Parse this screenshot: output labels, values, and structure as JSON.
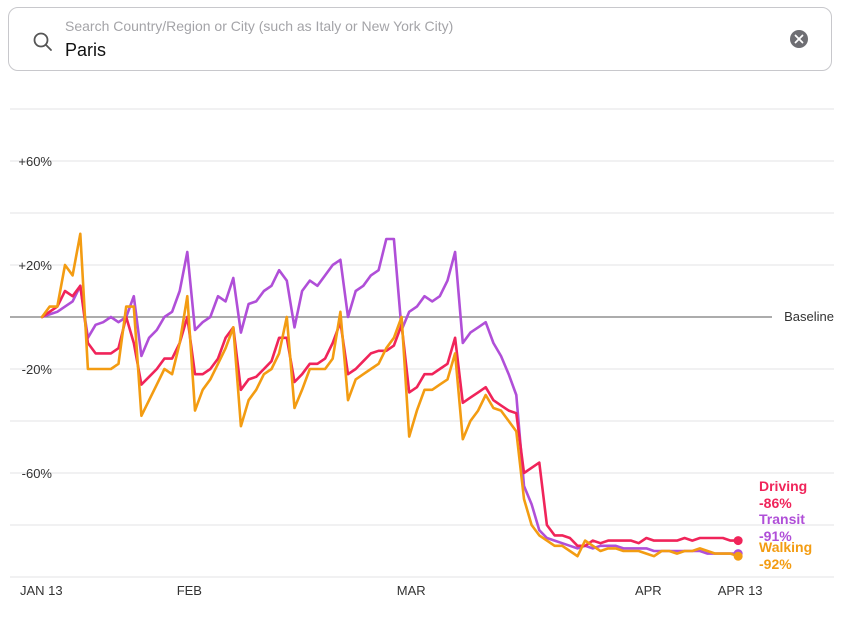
{
  "search": {
    "placeholder": "Search Country/Region or City (such as Italy or New York City)",
    "value": "Paris",
    "search_icon": "search-icon",
    "clear_icon": "close-circle-icon"
  },
  "chart_data": {
    "type": "line",
    "y_unit": "% change from baseline",
    "ylim": [
      -100,
      40
    ],
    "y_ticks": [
      {
        "value": 60,
        "label": "+60%"
      },
      {
        "value": 20,
        "label": "+20%"
      },
      {
        "value": -20,
        "label": "-20%"
      },
      {
        "value": -60,
        "label": "-60%"
      }
    ],
    "y_gridlines": [
      80,
      60,
      40,
      20,
      -20,
      -40,
      -60,
      -80,
      -100
    ],
    "baseline_label": "Baseline",
    "x_ticks": [
      {
        "day": 0,
        "label": "JAN 13"
      },
      {
        "day": 19,
        "label": "FEB"
      },
      {
        "day": 48,
        "label": "MAR"
      },
      {
        "day": 79,
        "label": "APR"
      },
      {
        "day": 91,
        "label": "APR 13"
      }
    ],
    "x_range_days": [
      0,
      91
    ],
    "grid": true,
    "series": [
      {
        "name": "Driving",
        "end_label": "-86%",
        "color": "#f0245a",
        "values": [
          0,
          2,
          4,
          10,
          8,
          12,
          -10,
          -14,
          -14,
          -14,
          -12,
          0,
          -10,
          -26,
          -23,
          -20,
          -16,
          -16,
          -10,
          0,
          -22,
          -22,
          -20,
          -16,
          -8,
          -4,
          -28,
          -24,
          -23,
          -20,
          -17,
          -8,
          -8,
          -25,
          -22,
          -18,
          -18,
          -16,
          -10,
          -2,
          -22,
          -20,
          -17,
          -14,
          -13,
          -13,
          -11,
          -3,
          -29,
          -27,
          -22,
          -22,
          -20,
          -18,
          -8,
          -33,
          -31,
          -29,
          -27,
          -32,
          -34,
          -36,
          -37,
          -60,
          -58,
          -56,
          -80,
          -84,
          -84,
          -85,
          -88,
          -88,
          -86,
          -87,
          -86,
          -86,
          -86,
          -86,
          -87,
          -85,
          -86,
          -86,
          -86,
          -86,
          -85,
          -86,
          -85,
          -85,
          -85,
          -85,
          -86,
          -86
        ]
      },
      {
        "name": "Transit",
        "end_label": "-91%",
        "color": "#b04fd8",
        "values": [
          0,
          1,
          2,
          4,
          6,
          12,
          -8,
          -3,
          -2,
          0,
          -2,
          0,
          8,
          -15,
          -8,
          -5,
          0,
          2,
          10,
          25,
          -5,
          -2,
          0,
          8,
          6,
          15,
          -6,
          5,
          6,
          10,
          12,
          18,
          14,
          -4,
          10,
          14,
          12,
          16,
          20,
          22,
          0,
          10,
          12,
          16,
          18,
          30,
          30,
          -5,
          2,
          4,
          8,
          6,
          8,
          14,
          25,
          -10,
          -6,
          -4,
          -2,
          -10,
          -15,
          -22,
          -30,
          -65,
          -72,
          -82,
          -85,
          -86,
          -87,
          -88,
          -89,
          -88,
          -89,
          -88,
          -88,
          -88,
          -89,
          -89,
          -89,
          -89,
          -90,
          -90,
          -90,
          -90,
          -90,
          -90,
          -90,
          -91,
          -91,
          -91,
          -91,
          -91
        ]
      },
      {
        "name": "Walking",
        "end_label": "-92%",
        "color": "#f39c12",
        "values": [
          0,
          4,
          4,
          20,
          16,
          32,
          -20,
          -20,
          -20,
          -20,
          -18,
          4,
          4,
          -38,
          -32,
          -26,
          -20,
          -22,
          -10,
          8,
          -36,
          -28,
          -24,
          -18,
          -12,
          -4,
          -42,
          -32,
          -28,
          -22,
          -20,
          -14,
          0,
          -35,
          -28,
          -20,
          -20,
          -20,
          -16,
          2,
          -32,
          -24,
          -22,
          -20,
          -18,
          -12,
          -8,
          0,
          -46,
          -36,
          -28,
          -28,
          -26,
          -24,
          -14,
          -47,
          -40,
          -36,
          -30,
          -35,
          -36,
          -40,
          -44,
          -70,
          -80,
          -84,
          -86,
          -88,
          -88,
          -90,
          -92,
          -86,
          -88,
          -90,
          -89,
          -89,
          -90,
          -90,
          -90,
          -91,
          -92,
          -90,
          -90,
          -91,
          -90,
          -90,
          -89,
          -90,
          -91,
          -91,
          -91,
          -92
        ]
      }
    ]
  }
}
